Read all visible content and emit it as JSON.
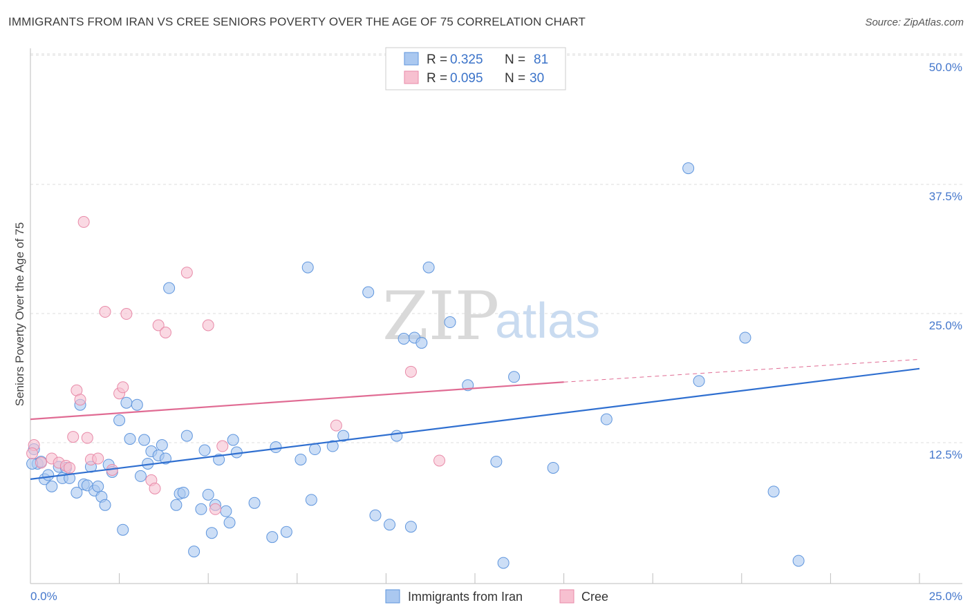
{
  "header": {
    "title": "IMMIGRANTS FROM IRAN VS CREE SENIORS POVERTY OVER THE AGE OF 75 CORRELATION CHART",
    "source": "Source: ZipAtlas.com"
  },
  "watermark": {
    "zip": "ZIP",
    "atlas": "atlas"
  },
  "legend_top": {
    "rows": [
      {
        "r_label": "R = ",
        "r_value": "0.325",
        "n_label": "N = ",
        "n_value": "81"
      },
      {
        "r_label": "R = ",
        "r_value": "0.095",
        "n_label": "N = ",
        "n_value": "30"
      }
    ]
  },
  "legend_bottom": {
    "items": [
      "Immigrants from Iran",
      "Cree"
    ]
  },
  "colors": {
    "blue_fill": "#aac8f0",
    "blue_stroke": "#5e95dd",
    "blue_line": "#2f6fd0",
    "pink_fill": "#f7c0d0",
    "pink_stroke": "#e88aa8",
    "pink_line": "#e06b93",
    "grid": "#dddddd",
    "axis_label": "#4477cc"
  },
  "chart_data": {
    "type": "scatter",
    "title": "IMMIGRANTS FROM IRAN VS CREE SENIORS POVERTY OVER THE AGE OF 75 CORRELATION CHART",
    "xlabel": "",
    "ylabel": "Seniors Poverty Over the Age of 75",
    "xlim": [
      0,
      25
    ],
    "ylim": [
      0,
      50
    ],
    "x_tick_labels": [
      "0.0%",
      "25.0%"
    ],
    "y_tick_labels": [
      "12.5%",
      "25.0%",
      "37.5%",
      "50.0%"
    ],
    "y_ticks": [
      12.5,
      25.0,
      37.5,
      50.0
    ],
    "grid": true,
    "legend_position": "top-center",
    "series": [
      {
        "name": "Immigrants from Iran",
        "color": "#aac8f0",
        "points": [
          [
            0.1,
            13.0
          ],
          [
            0.2,
            11.6
          ],
          [
            0.3,
            11.8
          ],
          [
            0.4,
            10.1
          ],
          [
            0.5,
            10.5
          ],
          [
            0.6,
            9.4
          ],
          [
            0.8,
            11.3
          ],
          [
            0.9,
            10.2
          ],
          [
            1.0,
            11.2
          ],
          [
            1.1,
            10.2
          ],
          [
            1.3,
            8.8
          ],
          [
            1.4,
            17.3
          ],
          [
            1.5,
            9.6
          ],
          [
            1.6,
            9.5
          ],
          [
            1.7,
            11.3
          ],
          [
            1.8,
            9.0
          ],
          [
            1.9,
            9.4
          ],
          [
            2.0,
            8.4
          ],
          [
            2.1,
            7.6
          ],
          [
            2.2,
            11.5
          ],
          [
            2.3,
            10.8
          ],
          [
            2.5,
            15.8
          ],
          [
            2.6,
            5.2
          ],
          [
            2.7,
            17.5
          ],
          [
            2.8,
            14.0
          ],
          [
            3.0,
            17.3
          ],
          [
            3.1,
            10.4
          ],
          [
            3.2,
            13.9
          ],
          [
            3.3,
            11.6
          ],
          [
            3.4,
            12.8
          ],
          [
            3.6,
            12.4
          ],
          [
            3.7,
            13.4
          ],
          [
            3.8,
            12.1
          ],
          [
            3.9,
            28.6
          ],
          [
            4.1,
            7.6
          ],
          [
            4.2,
            8.7
          ],
          [
            4.3,
            8.8
          ],
          [
            4.4,
            14.3
          ],
          [
            4.6,
            3.1
          ],
          [
            4.8,
            7.2
          ],
          [
            4.9,
            12.9
          ],
          [
            5.0,
            8.6
          ],
          [
            5.1,
            4.9
          ],
          [
            5.2,
            7.6
          ],
          [
            5.3,
            12.0
          ],
          [
            5.5,
            7.0
          ],
          [
            5.6,
            5.9
          ],
          [
            5.7,
            13.9
          ],
          [
            5.8,
            12.7
          ],
          [
            6.3,
            7.8
          ],
          [
            6.8,
            4.5
          ],
          [
            6.9,
            13.2
          ],
          [
            7.2,
            5.0
          ],
          [
            7.6,
            12.0
          ],
          [
            7.8,
            30.6
          ],
          [
            7.9,
            8.1
          ],
          [
            8.0,
            13.0
          ],
          [
            8.5,
            13.3
          ],
          [
            8.8,
            14.3
          ],
          [
            9.5,
            28.2
          ],
          [
            9.7,
            6.6
          ],
          [
            10.1,
            5.7
          ],
          [
            10.3,
            14.3
          ],
          [
            10.5,
            23.7
          ],
          [
            10.7,
            5.5
          ],
          [
            10.8,
            23.8
          ],
          [
            11.0,
            23.3
          ],
          [
            11.2,
            30.6
          ],
          [
            11.8,
            25.3
          ],
          [
            12.3,
            19.2
          ],
          [
            13.1,
            11.8
          ],
          [
            13.3,
            2.0
          ],
          [
            13.6,
            20.0
          ],
          [
            14.7,
            11.2
          ],
          [
            16.2,
            15.9
          ],
          [
            18.5,
            40.2
          ],
          [
            18.8,
            19.6
          ],
          [
            20.1,
            23.8
          ],
          [
            20.9,
            8.9
          ],
          [
            21.6,
            2.2
          ],
          [
            0.05,
            11.6
          ]
        ]
      },
      {
        "name": "Cree",
        "color": "#f7c0d0",
        "points": [
          [
            0.1,
            13.4
          ],
          [
            0.3,
            11.7
          ],
          [
            0.6,
            12.1
          ],
          [
            0.8,
            11.7
          ],
          [
            1.0,
            11.4
          ],
          [
            1.1,
            11.2
          ],
          [
            1.2,
            14.2
          ],
          [
            1.3,
            18.7
          ],
          [
            1.4,
            17.8
          ],
          [
            1.5,
            35.0
          ],
          [
            1.6,
            14.1
          ],
          [
            1.7,
            12.0
          ],
          [
            1.9,
            12.1
          ],
          [
            2.1,
            26.3
          ],
          [
            2.3,
            11.0
          ],
          [
            2.5,
            18.4
          ],
          [
            2.6,
            19.0
          ],
          [
            2.7,
            26.1
          ],
          [
            3.4,
            10.0
          ],
          [
            3.5,
            9.2
          ],
          [
            3.6,
            25.0
          ],
          [
            3.8,
            24.3
          ],
          [
            4.4,
            30.1
          ],
          [
            5.0,
            25.0
          ],
          [
            5.2,
            7.2
          ],
          [
            5.4,
            13.3
          ],
          [
            8.6,
            15.3
          ],
          [
            10.7,
            20.5
          ],
          [
            11.5,
            11.9
          ],
          [
            0.05,
            12.6
          ]
        ]
      }
    ],
    "trendlines": [
      {
        "series": "Immigrants from Iran",
        "x": [
          0,
          25
        ],
        "y": [
          10.1,
          20.8
        ],
        "style": "solid"
      },
      {
        "series": "Cree",
        "x": [
          0,
          15
        ],
        "y": [
          15.9,
          19.5
        ],
        "style": "solid"
      },
      {
        "series": "Cree",
        "x": [
          15,
          25
        ],
        "y": [
          19.5,
          21.7
        ],
        "style": "dashed"
      }
    ]
  }
}
